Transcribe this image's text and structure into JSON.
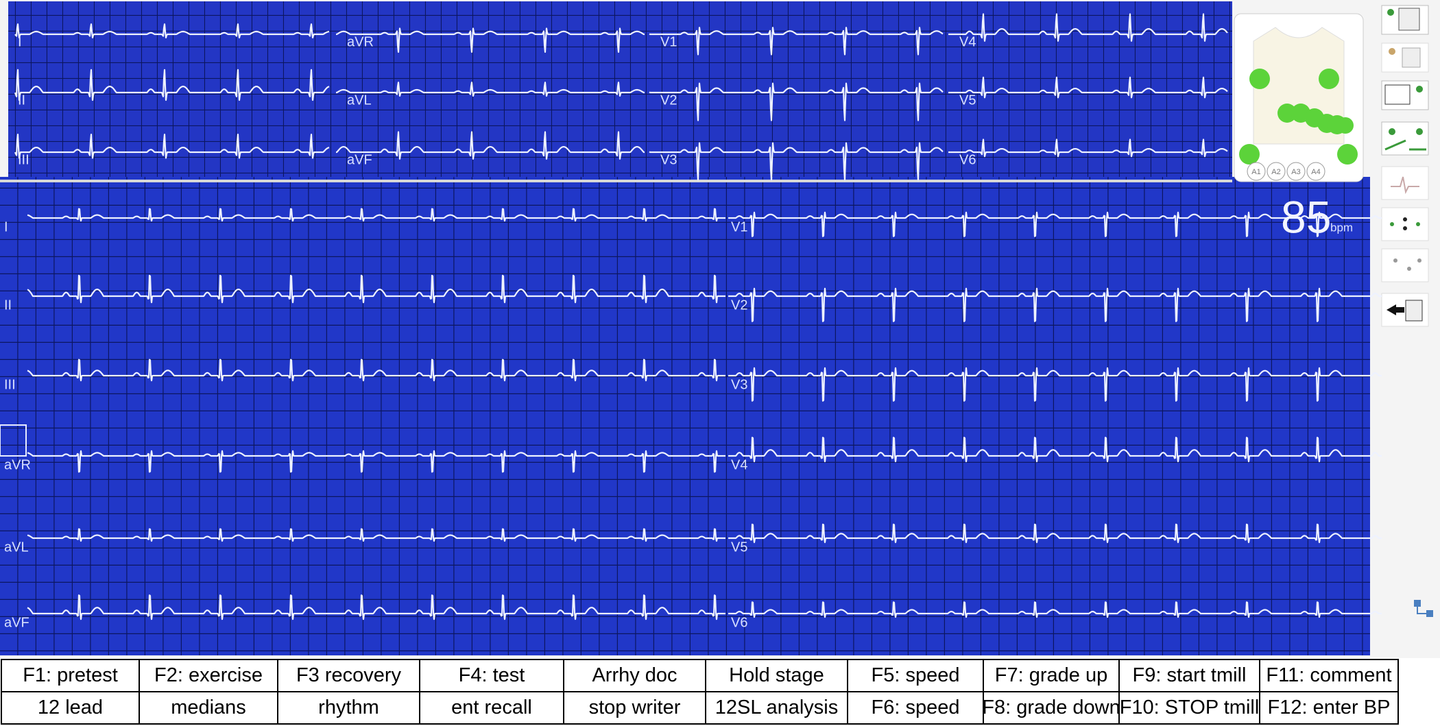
{
  "top_panel": {
    "leads": [
      "I",
      "II",
      "III",
      "aVR",
      "aVL",
      "aVF",
      "V1",
      "V2",
      "V3",
      "V4",
      "V5",
      "V6"
    ]
  },
  "electrode_diagram": {
    "ports": [
      "A1",
      "A2",
      "A3",
      "A4"
    ]
  },
  "rhythm_panel": {
    "leads": [
      "I",
      "II",
      "III",
      "aVR",
      "aVL",
      "aVF",
      "V1",
      "V2",
      "V3",
      "V4",
      "V5",
      "V6"
    ],
    "heart_rate": 85,
    "heart_rate_unit": "bpm"
  },
  "function_keys": {
    "rows": [
      [
        "F1: pretest",
        "F2: exercise",
        "F3 recovery",
        "F4: test",
        "Arrhy doc",
        "Hold stage",
        "F5: speed",
        "F7: grade up",
        "F9: start tmill",
        "F11: comment"
      ],
      [
        "12 lead",
        "medians",
        "rhythm",
        "ent recall",
        "stop writer",
        "12SL analysis",
        "F6: speed",
        "F8: grade down",
        "F10: STOP tmill",
        "F12: enter BP"
      ]
    ]
  }
}
